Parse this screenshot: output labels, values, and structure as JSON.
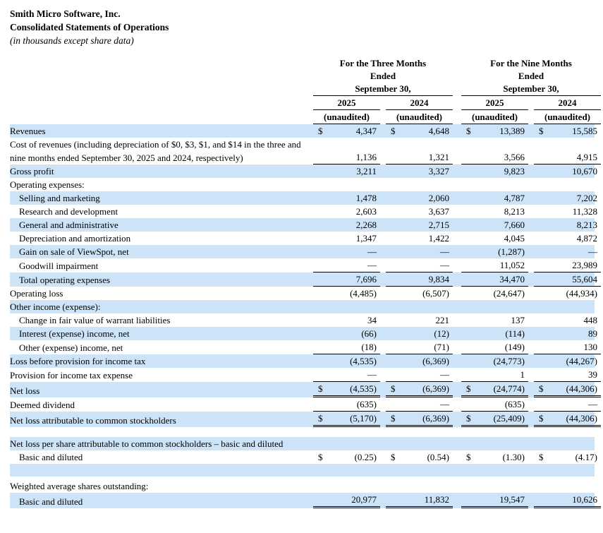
{
  "document": {
    "title": "Smith Micro Software, Inc.",
    "subtitle": "Consolidated Statements of Operations",
    "note": "(in thousands except share data)"
  },
  "colors": {
    "row_highlight": "#cde4f8",
    "text": "#000000"
  },
  "table": {
    "currency_symbol": "$",
    "column_groups": [
      {
        "label_lines": [
          "For the Three Months",
          "Ended",
          "September 30,"
        ]
      },
      {
        "label_lines": [
          "For the Nine Months",
          "Ended",
          "September 30,"
        ]
      }
    ],
    "year_headers": [
      "2025",
      "2024",
      "2025",
      "2024"
    ],
    "unaudited_label": "(unaudited)",
    "rows": [
      {
        "label": "Revenues",
        "indent": 0,
        "shaded": true,
        "dollar": true,
        "values": [
          "4,347",
          "4,648",
          "13,389",
          "15,585"
        ],
        "underline": "none"
      },
      {
        "label": "Cost of revenues (including depreciation of $0, $3, $1, and $14 in the three and nine months ended September 30, 2025 and 2024, respectively)",
        "indent": 0,
        "shaded": false,
        "dollar": false,
        "values": [
          "1,136",
          "1,321",
          "3,566",
          "4,915"
        ],
        "underline": "single"
      },
      {
        "label": "Gross profit",
        "indent": 0,
        "shaded": true,
        "dollar": false,
        "values": [
          "3,211",
          "3,327",
          "9,823",
          "10,670"
        ],
        "underline": "none"
      },
      {
        "label": "Operating expenses:",
        "indent": 0,
        "shaded": false,
        "dollar": false,
        "values": null,
        "underline": "none"
      },
      {
        "label": "Selling and marketing",
        "indent": 1,
        "shaded": true,
        "dollar": false,
        "values": [
          "1,478",
          "2,060",
          "4,787",
          "7,202"
        ],
        "underline": "none"
      },
      {
        "label": "Research and development",
        "indent": 1,
        "shaded": false,
        "dollar": false,
        "values": [
          "2,603",
          "3,637",
          "8,213",
          "11,328"
        ],
        "underline": "none"
      },
      {
        "label": "General and administrative",
        "indent": 1,
        "shaded": true,
        "dollar": false,
        "values": [
          "2,268",
          "2,715",
          "7,660",
          "8,213"
        ],
        "underline": "none"
      },
      {
        "label": "Depreciation and amortization",
        "indent": 1,
        "shaded": false,
        "dollar": false,
        "values": [
          "1,347",
          "1,422",
          "4,045",
          "4,872"
        ],
        "underline": "none"
      },
      {
        "label": "Gain on sale of ViewSpot, net",
        "indent": 1,
        "shaded": true,
        "dollar": false,
        "values": [
          "—",
          "—",
          "(1,287)",
          "—"
        ],
        "underline": "none"
      },
      {
        "label": "Goodwill impairment",
        "indent": 1,
        "shaded": false,
        "dollar": false,
        "values": [
          "—",
          "—",
          "11,052",
          "23,989"
        ],
        "underline": "single"
      },
      {
        "label": "Total operating expenses",
        "indent": 1,
        "shaded": true,
        "dollar": false,
        "values": [
          "7,696",
          "9,834",
          "34,470",
          "55,604"
        ],
        "underline": "single"
      },
      {
        "label": "Operating loss",
        "indent": 0,
        "shaded": false,
        "dollar": false,
        "values": [
          "(4,485)",
          "(6,507)",
          "(24,647)",
          "(44,934)"
        ],
        "underline": "none"
      },
      {
        "label": "Other income (expense):",
        "indent": 0,
        "shaded": true,
        "dollar": false,
        "values": null,
        "underline": "none"
      },
      {
        "label": "Change in fair value of warrant liabilities",
        "indent": 1,
        "shaded": false,
        "dollar": false,
        "values": [
          "34",
          "221",
          "137",
          "448"
        ],
        "underline": "none"
      },
      {
        "label": "Interest (expense) income, net",
        "indent": 1,
        "shaded": true,
        "dollar": false,
        "values": [
          "(66)",
          "(12)",
          "(114)",
          "89"
        ],
        "underline": "none"
      },
      {
        "label": "Other (expense) income, net",
        "indent": 1,
        "shaded": false,
        "dollar": false,
        "values": [
          "(18)",
          "(71)",
          "(149)",
          "130"
        ],
        "underline": "single"
      },
      {
        "label": "Loss before provision for income tax",
        "indent": 0,
        "shaded": true,
        "dollar": false,
        "values": [
          "(4,535)",
          "(6,369)",
          "(24,773)",
          "(44,267)"
        ],
        "underline": "none"
      },
      {
        "label": "Provision for income tax expense",
        "indent": 0,
        "shaded": false,
        "dollar": false,
        "values": [
          "—",
          "—",
          "1",
          "39"
        ],
        "underline": "single"
      },
      {
        "label": "Net loss",
        "indent": 0,
        "shaded": true,
        "dollar": true,
        "values": [
          "(4,535)",
          "(6,369)",
          "(24,774)",
          "(44,306)"
        ],
        "underline": "double"
      },
      {
        "label": "Deemed dividend",
        "indent": 0,
        "shaded": false,
        "dollar": false,
        "values": [
          "(635)",
          "—",
          "(635)",
          "—"
        ],
        "underline": "single"
      },
      {
        "label": "Net loss attributable to common stockholders",
        "indent": 0,
        "shaded": true,
        "dollar": true,
        "values": [
          "(5,170)",
          "(6,369)",
          "(25,409)",
          "(44,306)"
        ],
        "underline": "double"
      },
      {
        "type": "spacer",
        "shaded": false,
        "height": 14
      },
      {
        "label": "Net loss per share attributable to common stockholders – basic and diluted",
        "indent": 0,
        "shaded": true,
        "dollar": false,
        "values": null,
        "underline": "none"
      },
      {
        "label": "Basic and diluted",
        "indent": 1,
        "shaded": false,
        "dollar": true,
        "values": [
          "(0.25)",
          "(0.54)",
          "(1.30)",
          "(4.17)"
        ],
        "underline": "none"
      },
      {
        "type": "spacer",
        "shaded": true,
        "height": 18
      },
      {
        "type": "spacer",
        "shaded": false,
        "height": 4
      },
      {
        "label": "Weighted average shares outstanding:",
        "indent": 0,
        "shaded": false,
        "dollar": false,
        "values": null,
        "underline": "none"
      },
      {
        "label": "Basic and diluted",
        "indent": 1,
        "shaded": true,
        "dollar": false,
        "values": [
          "20,977",
          "11,832",
          "19,547",
          "10,626"
        ],
        "underline": "double"
      }
    ]
  }
}
